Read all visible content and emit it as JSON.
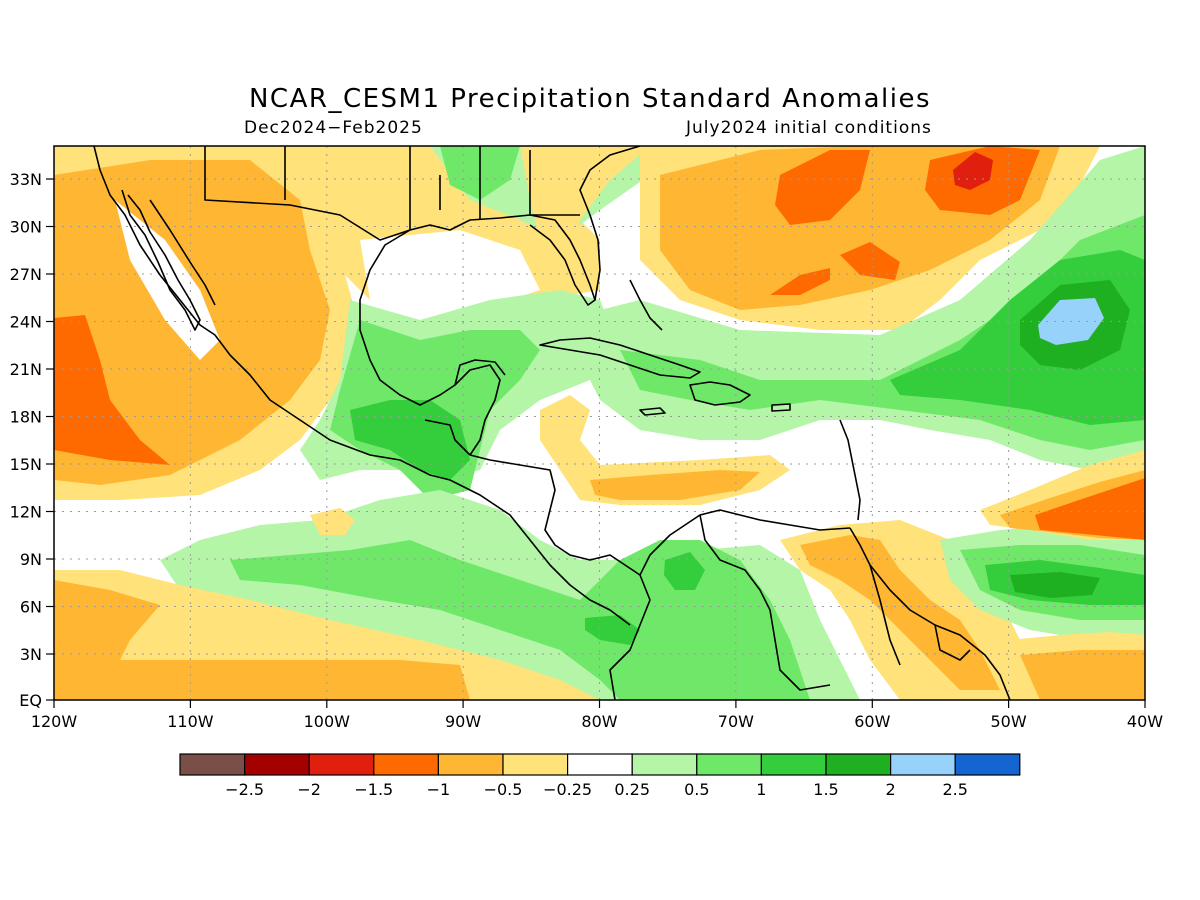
{
  "title": "NCAR_CESM1 Precipitation Standard Anomalies",
  "subtitle_left": "Dec2024−Feb2025",
  "subtitle_right": "July2024 initial conditions",
  "lat_labels": [
    "33N",
    "30N",
    "27N",
    "24N",
    "21N",
    "18N",
    "15N",
    "12N",
    "9N",
    "6N",
    "3N",
    "EQ"
  ],
  "lon_labels": [
    "120W",
    "110W",
    "100W",
    "90W",
    "80W",
    "70W",
    "60W",
    "50W",
    "40W"
  ],
  "legend": {
    "colors": [
      "#7a4f48",
      "#a50000",
      "#e01f0f",
      "#ff6a00",
      "#ffb733",
      "#ffe27a",
      "#ffffff",
      "#b4f5a8",
      "#6fe86a",
      "#34cd3c",
      "#1eb020",
      "#96d2fa",
      "#1464d2"
    ],
    "labels": [
      "−2.5",
      "−2",
      "−1.5",
      "−1",
      "−0.5",
      "−0.25",
      "0.25",
      "0.5",
      "1",
      "1.5",
      "2",
      "2.5"
    ]
  },
  "map": {
    "extent": {
      "lon_min": -120,
      "lon_max": -40,
      "lat_min": 0,
      "lat_max": 35
    },
    "variable": "precipitation standard anomaly",
    "colors": {
      "grid": "#9a9a9a",
      "coast": "#000000"
    }
  }
}
